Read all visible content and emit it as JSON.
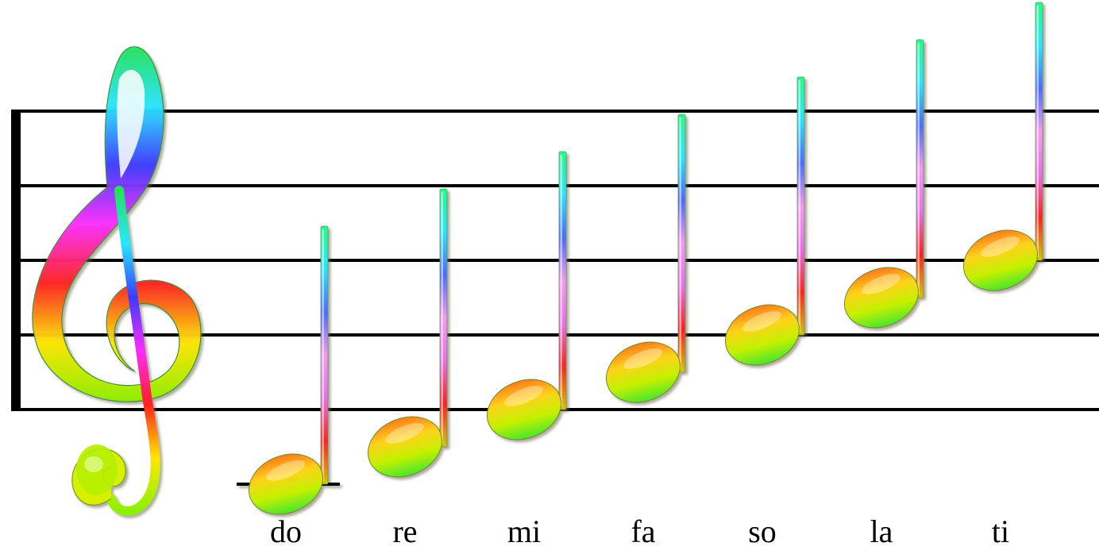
{
  "staff": {
    "line_count": 5,
    "line_color": "#000000"
  },
  "clef": {
    "icon": "treble-clef-icon",
    "colors": [
      "#22e35a",
      "#27e6ff",
      "#3b3bff",
      "#ff2bff",
      "#ff2020",
      "#ffe600",
      "#8cf000"
    ]
  },
  "notes": [
    {
      "syllable": "do",
      "staff_position": -2,
      "ledger_line": true
    },
    {
      "syllable": "re",
      "staff_position": -1,
      "ledger_line": false
    },
    {
      "syllable": "mi",
      "staff_position": 0,
      "ledger_line": false
    },
    {
      "syllable": "fa",
      "staff_position": 1,
      "ledger_line": false
    },
    {
      "syllable": "so",
      "staff_position": 2,
      "ledger_line": false
    },
    {
      "syllable": "la",
      "staff_position": 3,
      "ledger_line": false
    },
    {
      "syllable": "ti",
      "staff_position": 4,
      "ledger_line": false
    }
  ],
  "note_colors": {
    "head": [
      "#ff7a1a",
      "#ffd21a",
      "#c6f000",
      "#45e62e"
    ],
    "stem": [
      "#22ff88",
      "#27e6ff",
      "#4a6bff",
      "#f59af0",
      "#e870e8",
      "#ff2020",
      "#d8c600"
    ]
  }
}
